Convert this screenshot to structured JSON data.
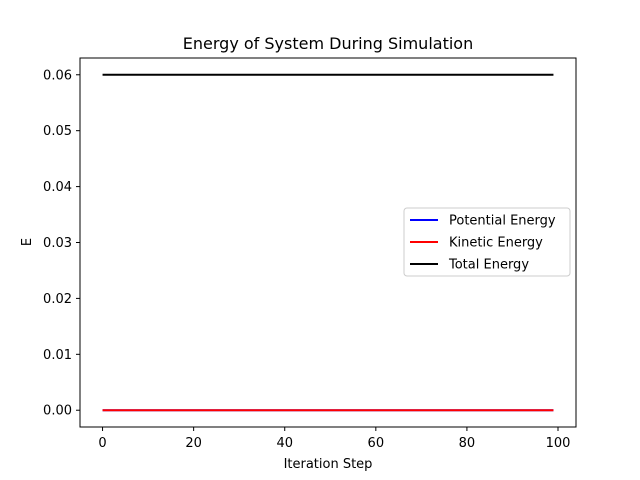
{
  "chart_data": {
    "type": "line",
    "title": "Energy of System During Simulation",
    "xlabel": "Iteration Step",
    "ylabel": "E",
    "xlim": [
      -4.95,
      103.95
    ],
    "ylim": [
      -0.003,
      0.063
    ],
    "xticks": [
      0,
      20,
      40,
      60,
      80,
      100
    ],
    "xtick_labels": [
      "0",
      "20",
      "40",
      "60",
      "80",
      "100"
    ],
    "yticks": [
      0.0,
      0.01,
      0.02,
      0.03,
      0.04,
      0.05,
      0.06
    ],
    "ytick_labels": [
      "0.00",
      "0.01",
      "0.02",
      "0.03",
      "0.04",
      "0.05",
      "0.06"
    ],
    "grid": false,
    "legend_position": "center-right",
    "series": [
      {
        "name": "Potential Energy",
        "color": "#0000ff",
        "x": [
          0,
          99
        ],
        "y": [
          0.0,
          0.0
        ]
      },
      {
        "name": "Kinetic Energy",
        "color": "#ff0000",
        "x": [
          0,
          99
        ],
        "y": [
          0.0,
          0.0
        ]
      },
      {
        "name": "Total Energy",
        "color": "#000000",
        "x": [
          0,
          99
        ],
        "y": [
          0.06,
          0.06
        ]
      }
    ]
  }
}
